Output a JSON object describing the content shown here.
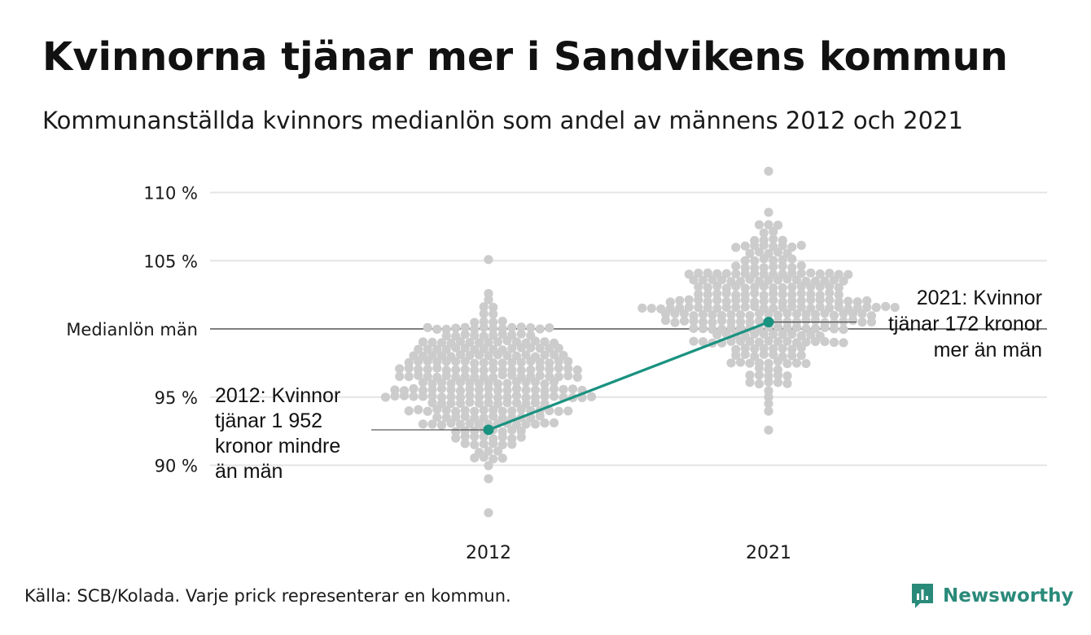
{
  "title": "Kvinnorna tjänar mer i Sandvikens kommun",
  "subtitle": "Kommunanställda kvinnors medianlön som andel av männens 2012 och 2021",
  "footer": "Källa: SCB/Kolada. Varje prick representerar en kommun.",
  "logo": {
    "text": "Newsworthy",
    "icon": "newsworthy-logo-icon",
    "color": "#2a8a7a"
  },
  "chart_data": {
    "type": "scatter",
    "subtype": "beeswarm",
    "categories": [
      "2012",
      "2021"
    ],
    "ylim": [
      86,
      111.5
    ],
    "y_ticks": [
      {
        "value": 90,
        "label": "90 %"
      },
      {
        "value": 95,
        "label": "95 %"
      },
      {
        "value": 100,
        "label": "Medianlön män"
      },
      {
        "value": 105,
        "label": "105 %"
      },
      {
        "value": 110,
        "label": "110 %"
      }
    ],
    "grid": true,
    "distributions": [
      {
        "category": "2012",
        "min": 86.5,
        "max": 105.3,
        "center": 96.0,
        "spread": 2.7,
        "count": 290
      },
      {
        "category": "2021",
        "min": 92.6,
        "max": 111.4,
        "center": 101.5,
        "spread": 2.6,
        "count": 290
      }
    ],
    "highlight": {
      "name": "Sandviken",
      "color": "#1a9280",
      "points": [
        {
          "x": "2012",
          "y": 92.6
        },
        {
          "x": "2021",
          "y": 100.5
        }
      ]
    },
    "annotations": [
      {
        "category": "2012",
        "lines": [
          "2012: Kvinnor",
          "tjänar 1 952",
          "kronor mindre",
          "än män"
        ],
        "side": "left"
      },
      {
        "category": "2021",
        "lines": [
          "2021: Kvinnor",
          "tjänar 172 kronor",
          "mer än män"
        ],
        "side": "right"
      }
    ],
    "colors": {
      "dots": "#cccccc",
      "grid": "#e4e4e4",
      "baseline": "#333333",
      "highlight": "#1a9280"
    }
  }
}
